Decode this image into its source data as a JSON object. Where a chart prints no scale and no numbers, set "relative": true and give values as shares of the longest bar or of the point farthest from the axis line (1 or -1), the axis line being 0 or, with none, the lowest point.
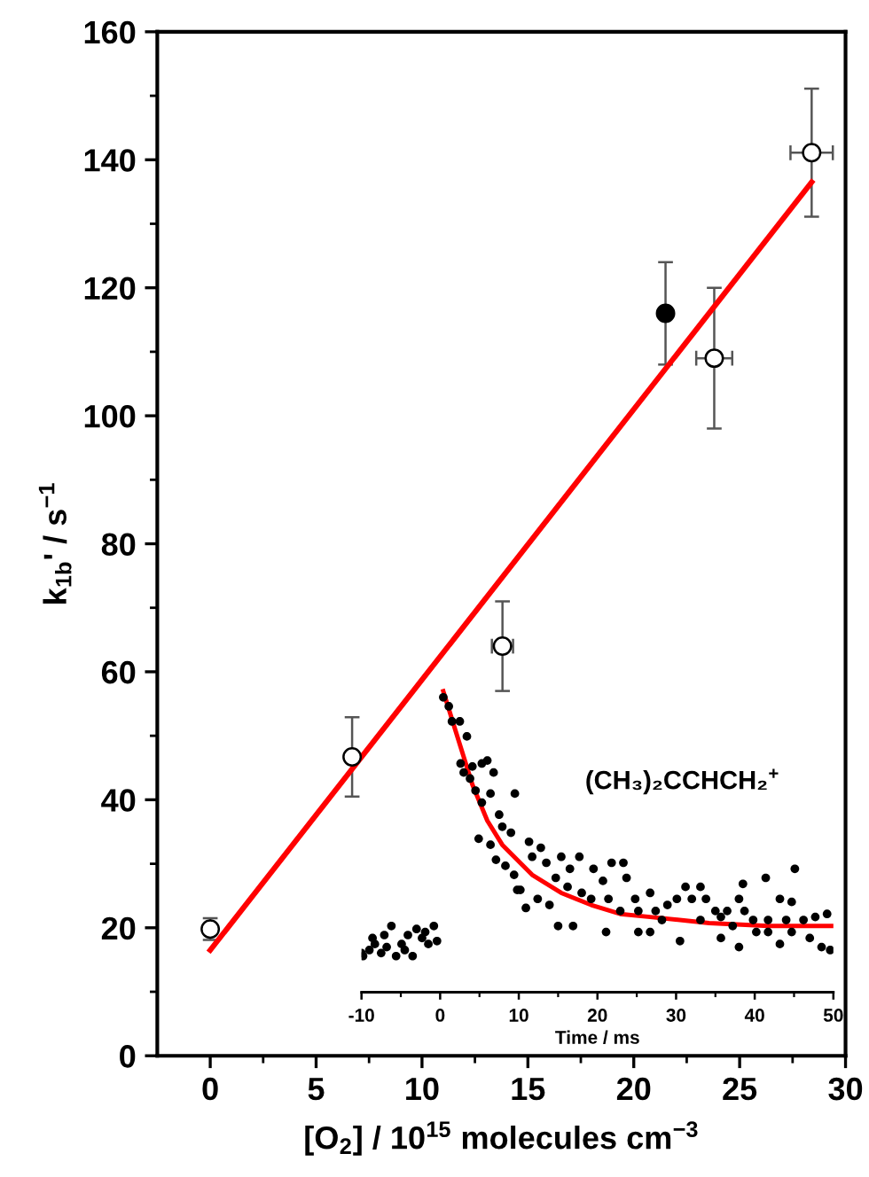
{
  "chart_data": [
    {
      "type": "scatter",
      "xlabel": "[O$_{2}$] / 10$^{15}$ molecules cm$^{−3}$",
      "ylabel": "k$_{1b}$' / s$^{−1}$",
      "xlim": [
        -2.5,
        30
      ],
      "ylim": [
        0,
        160
      ],
      "xticks": [
        0,
        5,
        10,
        15,
        20,
        25,
        30
      ],
      "yticks": [
        0,
        20,
        40,
        60,
        80,
        100,
        120,
        140,
        160
      ],
      "series": [
        {
          "marker": "circle",
          "color": "#ffffff",
          "x": [
            0,
            6.7,
            13.8,
            23.8,
            28.4
          ],
          "values": [
            19.8,
            46.7,
            64,
            109,
            141.1
          ],
          "errors": [
            1.7,
            6.2,
            7,
            11,
            10
          ],
          "xerrors": [
            null,
            null,
            0.5,
            0.85,
            1.0
          ]
        },
        {
          "marker": "circle",
          "color": "#000000",
          "x": [
            21.5
          ],
          "values": [
            116
          ],
          "errors": [
            8
          ]
        },
        {
          "type": "line",
          "color": "#ff0000",
          "x": [
            0,
            28.4
          ],
          "values": [
            16.5,
            136.5
          ]
        }
      ]
    },
    {
      "type": "scatter",
      "relative": true,
      "xlabel": "Time / ms",
      "xlim": [
        -10,
        50
      ],
      "xticks": [
        -10,
        0,
        10,
        20,
        30,
        40,
        50
      ],
      "tick_labels": "x",
      "annotations": [
        "(CH₃)₂CCHCH₂$^{+}$"
      ],
      "series": [
        {
          "marker": "circle",
          "color": "#000000",
          "x": [
            -9.8,
            -9.0,
            -8.3,
            -7.5,
            -6.8,
            -6.2,
            -5.6,
            -4.9,
            -4.1,
            -3.5,
            -3.0,
            -2.3,
            -1.5,
            -0.8,
            -0.4,
            -8.6,
            -7.1,
            -4.5,
            -1.9,
            -10.0,
            0.4,
            1.1,
            1.5,
            2.5,
            3.4,
            2.6,
            3.0,
            3.8,
            4.1,
            5.3,
            6.0,
            6.8,
            4.5,
            5.3,
            6.4,
            9.5,
            7.5,
            7.9,
            9.0,
            4.9,
            6.4,
            7.1,
            8.3,
            9.4,
            10.2,
            11.3,
            11.7,
            12.8,
            13.5,
            14.7,
            15.4,
            16.5,
            17.7,
            10.9,
            12.4,
            13.9,
            15.0,
            16.9,
            18.0,
            19.2,
            19.5,
            20.7,
            21.4,
            21.8,
            23.3,
            23.7,
            24.8,
            25.2,
            26.7,
            27.4,
            28.2,
            28.9,
            30.1,
            31.2,
            32.0,
            33.1,
            33.8,
            35.0,
            35.7,
            36.5,
            37.2,
            38.0,
            38.7,
            39.8,
            41.4,
            41.7,
            43.2,
            44.0,
            45.1,
            46.2,
            47.7,
            49.2,
            48.5,
            49.6,
            44.7,
            43.2,
            41.7,
            38.0,
            30.5,
            26.7,
            25.2,
            21.1,
            35.7,
            40.2,
            47.0,
            33.1,
            44.7,
            38.5,
            22.9,
            16.2,
            9.8
          ],
          "values": [
            0.12,
            0.14,
            0.16,
            0.13,
            0.15,
            0.22,
            0.12,
            0.16,
            0.19,
            0.12,
            0.21,
            0.18,
            0.16,
            0.22,
            0.17,
            0.18,
            0.19,
            0.14,
            0.2,
            0.13,
            0.98,
            0.95,
            0.9,
            0.9,
            0.85,
            0.76,
            0.73,
            0.71,
            0.75,
            0.76,
            0.77,
            0.73,
            0.67,
            0.63,
            0.66,
            0.66,
            0.59,
            0.55,
            0.53,
            0.51,
            0.49,
            0.44,
            0.42,
            0.39,
            0.34,
            0.5,
            0.45,
            0.48,
            0.43,
            0.38,
            0.45,
            0.41,
            0.45,
            0.28,
            0.31,
            0.29,
            0.22,
            0.22,
            0.33,
            0.31,
            0.41,
            0.37,
            0.31,
            0.43,
            0.43,
            0.38,
            0.31,
            0.27,
            0.33,
            0.27,
            0.24,
            0.29,
            0.31,
            0.35,
            0.31,
            0.35,
            0.31,
            0.27,
            0.25,
            0.27,
            0.22,
            0.31,
            0.27,
            0.24,
            0.38,
            0.24,
            0.31,
            0.24,
            0.41,
            0.24,
            0.25,
            0.26,
            0.15,
            0.14,
            0.2,
            0.16,
            0.2,
            0.15,
            0.17,
            0.2,
            0.2,
            0.2,
            0.18,
            0.2,
            0.18,
            0.24,
            0.3,
            0.36,
            0.27,
            0.35,
            0.34
          ]
        },
        {
          "type": "line",
          "color": "#ff0000",
          "x": [
            0.4,
            2.3,
            4.1,
            6.0,
            7.9,
            11.7,
            15.4,
            19.2,
            22.9,
            26.7,
            34.2,
            41.7,
            50.0
          ],
          "values": [
            1.0,
            0.84,
            0.69,
            0.57,
            0.49,
            0.39,
            0.33,
            0.29,
            0.26,
            0.25,
            0.23,
            0.22,
            0.22
          ]
        }
      ]
    }
  ]
}
